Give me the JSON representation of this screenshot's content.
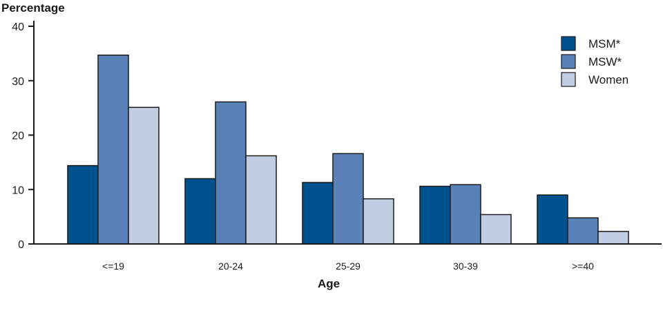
{
  "chart_data": {
    "type": "bar",
    "ylabel": "Percentage",
    "xlabel": "Age",
    "ylim": [
      0,
      40
    ],
    "yticks": [
      0,
      10,
      20,
      30,
      40
    ],
    "categories": [
      "<=19",
      "20-24",
      "25-29",
      "30-39",
      ">=40"
    ],
    "series": [
      {
        "name": "MSM*",
        "color": "#00528f",
        "values": [
          14.4,
          12.0,
          11.3,
          10.6,
          9.0
        ]
      },
      {
        "name": "MSW*",
        "color": "#5a82b8",
        "values": [
          34.7,
          26.1,
          16.6,
          10.9,
          4.8
        ]
      },
      {
        "name": "Women",
        "color": "#c2cde3",
        "values": [
          25.1,
          16.2,
          8.3,
          5.4,
          2.3
        ]
      }
    ],
    "legend_position": "top-right",
    "grid": false
  }
}
